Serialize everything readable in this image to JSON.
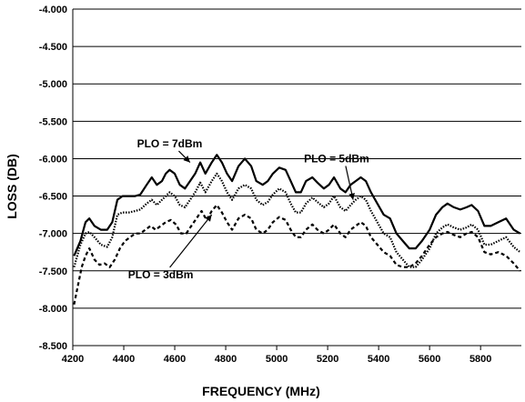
{
  "chart_data": {
    "type": "line",
    "title": "",
    "xlabel": "FREQUENCY (MHz)",
    "ylabel": "LOSS (DB)",
    "xlim": [
      4200,
      5960
    ],
    "ylim": [
      -8.5,
      -4.0
    ],
    "x_ticks": [
      4200,
      4400,
      4600,
      4800,
      5000,
      5200,
      5400,
      5600,
      5800
    ],
    "x_tick_labels": [
      "4200",
      "4400",
      "4600",
      "4800",
      "5000",
      "5200",
      "5400",
      "5600",
      "5800"
    ],
    "y_ticks": [
      -4.0,
      -4.5,
      -5.0,
      -5.5,
      -6.0,
      -6.5,
      -7.0,
      -7.5,
      -8.0,
      -8.5
    ],
    "y_tick_labels": [
      "-4.000",
      "-4.500",
      "-5.000",
      "-5.500",
      "-6.000",
      "-6.500",
      "-7.000",
      "-7.500",
      "-8.000",
      "-8.500"
    ],
    "grid": "horizontal",
    "legend": "none",
    "series": [
      {
        "name": "PLO = 7dBm",
        "style": "solid",
        "color": "#000000",
        "points": [
          [
            4205,
            -7.3
          ],
          [
            4230,
            -7.1
          ],
          [
            4250,
            -6.85
          ],
          [
            4265,
            -6.8
          ],
          [
            4285,
            -6.9
          ],
          [
            4310,
            -6.95
          ],
          [
            4335,
            -6.95
          ],
          [
            4355,
            -6.85
          ],
          [
            4375,
            -6.55
          ],
          [
            4395,
            -6.5
          ],
          [
            4420,
            -6.5
          ],
          [
            4445,
            -6.5
          ],
          [
            4465,
            -6.48
          ],
          [
            4490,
            -6.35
          ],
          [
            4510,
            -6.25
          ],
          [
            4530,
            -6.35
          ],
          [
            4550,
            -6.3
          ],
          [
            4565,
            -6.2
          ],
          [
            4580,
            -6.15
          ],
          [
            4600,
            -6.2
          ],
          [
            4620,
            -6.35
          ],
          [
            4640,
            -6.4
          ],
          [
            4660,
            -6.3
          ],
          [
            4680,
            -6.2
          ],
          [
            4700,
            -6.05
          ],
          [
            4720,
            -6.2
          ],
          [
            4745,
            -6.05
          ],
          [
            4765,
            -5.95
          ],
          [
            4785,
            -6.05
          ],
          [
            4805,
            -6.2
          ],
          [
            4825,
            -6.3
          ],
          [
            4850,
            -6.1
          ],
          [
            4875,
            -6.0
          ],
          [
            4900,
            -6.1
          ],
          [
            4920,
            -6.3
          ],
          [
            4945,
            -6.35
          ],
          [
            4965,
            -6.3
          ],
          [
            4985,
            -6.2
          ],
          [
            5010,
            -6.12
          ],
          [
            5035,
            -6.15
          ],
          [
            5055,
            -6.3
          ],
          [
            5075,
            -6.45
          ],
          [
            5095,
            -6.45
          ],
          [
            5115,
            -6.3
          ],
          [
            5140,
            -6.25
          ],
          [
            5160,
            -6.32
          ],
          [
            5185,
            -6.4
          ],
          [
            5205,
            -6.35
          ],
          [
            5225,
            -6.25
          ],
          [
            5250,
            -6.4
          ],
          [
            5270,
            -6.45
          ],
          [
            5290,
            -6.35
          ],
          [
            5310,
            -6.3
          ],
          [
            5330,
            -6.25
          ],
          [
            5350,
            -6.3
          ],
          [
            5370,
            -6.45
          ],
          [
            5395,
            -6.6
          ],
          [
            5420,
            -6.75
          ],
          [
            5445,
            -6.8
          ],
          [
            5470,
            -7.0
          ],
          [
            5495,
            -7.1
          ],
          [
            5520,
            -7.2
          ],
          [
            5545,
            -7.2
          ],
          [
            5570,
            -7.1
          ],
          [
            5600,
            -6.95
          ],
          [
            5625,
            -6.75
          ],
          [
            5650,
            -6.65
          ],
          [
            5670,
            -6.6
          ],
          [
            5695,
            -6.65
          ],
          [
            5720,
            -6.68
          ],
          [
            5745,
            -6.65
          ],
          [
            5765,
            -6.62
          ],
          [
            5790,
            -6.7
          ],
          [
            5815,
            -6.9
          ],
          [
            5840,
            -6.9
          ],
          [
            5870,
            -6.85
          ],
          [
            5900,
            -6.8
          ],
          [
            5930,
            -6.95
          ],
          [
            5955,
            -7.0
          ]
        ]
      },
      {
        "name": "PLO = 5dBm",
        "style": "dotted",
        "color": "#000000",
        "points": [
          [
            4205,
            -7.45
          ],
          [
            4230,
            -7.15
          ],
          [
            4250,
            -7.0
          ],
          [
            4265,
            -6.98
          ],
          [
            4285,
            -7.05
          ],
          [
            4310,
            -7.15
          ],
          [
            4335,
            -7.18
          ],
          [
            4355,
            -7.05
          ],
          [
            4375,
            -6.75
          ],
          [
            4395,
            -6.72
          ],
          [
            4420,
            -6.72
          ],
          [
            4445,
            -6.7
          ],
          [
            4465,
            -6.68
          ],
          [
            4490,
            -6.6
          ],
          [
            4510,
            -6.55
          ],
          [
            4530,
            -6.62
          ],
          [
            4550,
            -6.55
          ],
          [
            4565,
            -6.5
          ],
          [
            4580,
            -6.45
          ],
          [
            4600,
            -6.5
          ],
          [
            4620,
            -6.62
          ],
          [
            4640,
            -6.65
          ],
          [
            4660,
            -6.55
          ],
          [
            4680,
            -6.45
          ],
          [
            4700,
            -6.32
          ],
          [
            4720,
            -6.45
          ],
          [
            4745,
            -6.3
          ],
          [
            4765,
            -6.2
          ],
          [
            4785,
            -6.3
          ],
          [
            4805,
            -6.45
          ],
          [
            4825,
            -6.55
          ],
          [
            4850,
            -6.4
          ],
          [
            4875,
            -6.35
          ],
          [
            4900,
            -6.4
          ],
          [
            4920,
            -6.55
          ],
          [
            4945,
            -6.62
          ],
          [
            4965,
            -6.58
          ],
          [
            4985,
            -6.48
          ],
          [
            5010,
            -6.4
          ],
          [
            5035,
            -6.45
          ],
          [
            5055,
            -6.6
          ],
          [
            5075,
            -6.72
          ],
          [
            5095,
            -6.72
          ],
          [
            5115,
            -6.6
          ],
          [
            5140,
            -6.52
          ],
          [
            5160,
            -6.58
          ],
          [
            5185,
            -6.65
          ],
          [
            5205,
            -6.6
          ],
          [
            5225,
            -6.5
          ],
          [
            5250,
            -6.65
          ],
          [
            5270,
            -6.7
          ],
          [
            5290,
            -6.62
          ],
          [
            5310,
            -6.55
          ],
          [
            5330,
            -6.5
          ],
          [
            5350,
            -6.55
          ],
          [
            5370,
            -6.7
          ],
          [
            5395,
            -6.85
          ],
          [
            5420,
            -7.0
          ],
          [
            5445,
            -7.05
          ],
          [
            5470,
            -7.25
          ],
          [
            5495,
            -7.35
          ],
          [
            5520,
            -7.45
          ],
          [
            5545,
            -7.45
          ],
          [
            5570,
            -7.35
          ],
          [
            5600,
            -7.2
          ],
          [
            5625,
            -7.0
          ],
          [
            5650,
            -6.92
          ],
          [
            5670,
            -6.88
          ],
          [
            5695,
            -6.92
          ],
          [
            5720,
            -6.95
          ],
          [
            5745,
            -6.92
          ],
          [
            5765,
            -6.88
          ],
          [
            5790,
            -6.95
          ],
          [
            5815,
            -7.15
          ],
          [
            5840,
            -7.15
          ],
          [
            5870,
            -7.1
          ],
          [
            5900,
            -7.05
          ],
          [
            5930,
            -7.18
          ],
          [
            5955,
            -7.25
          ]
        ]
      },
      {
        "name": "PLO = 3dBm",
        "style": "dashed",
        "color": "#000000",
        "points": [
          [
            4205,
            -7.95
          ],
          [
            4220,
            -7.7
          ],
          [
            4235,
            -7.45
          ],
          [
            4250,
            -7.3
          ],
          [
            4265,
            -7.2
          ],
          [
            4285,
            -7.35
          ],
          [
            4305,
            -7.42
          ],
          [
            4325,
            -7.4
          ],
          [
            4345,
            -7.45
          ],
          [
            4365,
            -7.35
          ],
          [
            4385,
            -7.2
          ],
          [
            4405,
            -7.1
          ],
          [
            4425,
            -7.05
          ],
          [
            4445,
            -7.0
          ],
          [
            4465,
            -7.0
          ],
          [
            4485,
            -6.95
          ],
          [
            4505,
            -6.9
          ],
          [
            4525,
            -6.95
          ],
          [
            4545,
            -6.9
          ],
          [
            4565,
            -6.85
          ],
          [
            4585,
            -6.82
          ],
          [
            4605,
            -6.88
          ],
          [
            4625,
            -7.0
          ],
          [
            4645,
            -7.0
          ],
          [
            4665,
            -6.9
          ],
          [
            4685,
            -6.8
          ],
          [
            4705,
            -6.7
          ],
          [
            4725,
            -6.82
          ],
          [
            4745,
            -6.7
          ],
          [
            4765,
            -6.62
          ],
          [
            4785,
            -6.72
          ],
          [
            4805,
            -6.85
          ],
          [
            4825,
            -6.95
          ],
          [
            4850,
            -6.8
          ],
          [
            4875,
            -6.75
          ],
          [
            4900,
            -6.8
          ],
          [
            4920,
            -6.95
          ],
          [
            4945,
            -7.0
          ],
          [
            4965,
            -6.95
          ],
          [
            4985,
            -6.85
          ],
          [
            5010,
            -6.78
          ],
          [
            5035,
            -6.82
          ],
          [
            5055,
            -6.95
          ],
          [
            5075,
            -7.05
          ],
          [
            5095,
            -7.05
          ],
          [
            5115,
            -6.95
          ],
          [
            5140,
            -6.88
          ],
          [
            5160,
            -6.95
          ],
          [
            5185,
            -7.0
          ],
          [
            5205,
            -6.95
          ],
          [
            5225,
            -6.88
          ],
          [
            5250,
            -7.0
          ],
          [
            5270,
            -7.05
          ],
          [
            5290,
            -6.95
          ],
          [
            5310,
            -6.9
          ],
          [
            5330,
            -6.85
          ],
          [
            5350,
            -6.9
          ],
          [
            5370,
            -7.05
          ],
          [
            5395,
            -7.15
          ],
          [
            5420,
            -7.25
          ],
          [
            5445,
            -7.3
          ],
          [
            5470,
            -7.42
          ],
          [
            5495,
            -7.45
          ],
          [
            5520,
            -7.45
          ],
          [
            5545,
            -7.4
          ],
          [
            5570,
            -7.3
          ],
          [
            5600,
            -7.15
          ],
          [
            5625,
            -7.05
          ],
          [
            5650,
            -7.0
          ],
          [
            5670,
            -6.98
          ],
          [
            5695,
            -7.02
          ],
          [
            5720,
            -7.05
          ],
          [
            5745,
            -7.0
          ],
          [
            5765,
            -6.98
          ],
          [
            5790,
            -7.05
          ],
          [
            5815,
            -7.25
          ],
          [
            5840,
            -7.28
          ],
          [
            5870,
            -7.25
          ],
          [
            5900,
            -7.3
          ],
          [
            5930,
            -7.4
          ],
          [
            5955,
            -7.5
          ]
        ]
      }
    ],
    "annotations": [
      {
        "text": "PLO = 7dBm",
        "series": 0,
        "label_at": [
          4580,
          -5.85
        ],
        "arrow_to": [
          4660,
          -6.05
        ]
      },
      {
        "text": "PLO = 5dBm",
        "series": 1,
        "label_at": [
          5235,
          -6.05
        ],
        "arrow_to": [
          5300,
          -6.55
        ]
      },
      {
        "text": "PLO = 3dBm",
        "series": 2,
        "label_at": [
          4545,
          -7.6
        ],
        "arrow_to": [
          4745,
          -6.75
        ]
      }
    ]
  }
}
